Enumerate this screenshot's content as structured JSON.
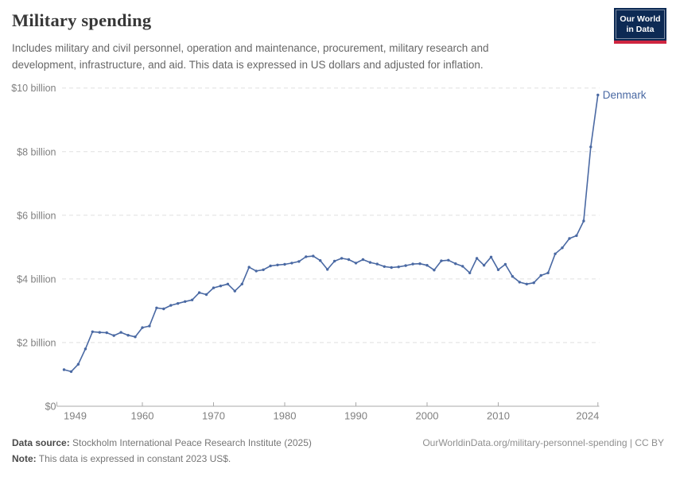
{
  "header": {
    "title": "Military spending",
    "subtitle": "Includes military and civil personnel, operation and maintenance, procurement, military research and development, infrastructure, and aid. This data is expressed in US dollars and adjusted for inflation."
  },
  "logo": {
    "line1": "Our World",
    "line2": "in Data",
    "bg_color": "#0d2a54",
    "bar_color": "#cf2540"
  },
  "chart_data": {
    "type": "line",
    "title": "Military spending",
    "entity_label": "Denmark",
    "line_color": "#4a69a3",
    "grid": true,
    "ylabel": "",
    "xlabel": "",
    "ylim": [
      0,
      10
    ],
    "yticks": [
      {
        "value": 0,
        "label": "$0"
      },
      {
        "value": 2,
        "label": "$2 billion"
      },
      {
        "value": 4,
        "label": "$4 billion"
      },
      {
        "value": 6,
        "label": "$6 billion"
      },
      {
        "value": 8,
        "label": "$8 billion"
      },
      {
        "value": 10,
        "label": "$10 billion"
      }
    ],
    "xticks": [
      1949,
      1960,
      1970,
      1980,
      1990,
      2000,
      2010,
      2024
    ],
    "x": [
      1949,
      1950,
      1951,
      1952,
      1953,
      1954,
      1955,
      1956,
      1957,
      1958,
      1959,
      1960,
      1961,
      1962,
      1963,
      1964,
      1965,
      1966,
      1967,
      1968,
      1969,
      1970,
      1971,
      1972,
      1973,
      1974,
      1975,
      1976,
      1977,
      1978,
      1979,
      1980,
      1981,
      1982,
      1983,
      1984,
      1985,
      1986,
      1987,
      1988,
      1989,
      1990,
      1991,
      1992,
      1993,
      1994,
      1995,
      1996,
      1997,
      1998,
      1999,
      2000,
      2001,
      2002,
      2003,
      2004,
      2005,
      2006,
      2007,
      2008,
      2009,
      2010,
      2011,
      2012,
      2013,
      2014,
      2015,
      2016,
      2017,
      2018,
      2019,
      2020,
      2021,
      2022,
      2023,
      2024
    ],
    "series": [
      {
        "name": "Denmark",
        "values": [
          1.15,
          1.09,
          1.32,
          1.8,
          2.34,
          2.32,
          2.31,
          2.22,
          2.32,
          2.23,
          2.18,
          2.47,
          2.52,
          3.09,
          3.06,
          3.17,
          3.23,
          3.29,
          3.34,
          3.57,
          3.51,
          3.72,
          3.78,
          3.84,
          3.62,
          3.84,
          4.37,
          4.25,
          4.29,
          4.41,
          4.44,
          4.46,
          4.5,
          4.55,
          4.7,
          4.72,
          4.58,
          4.3,
          4.56,
          4.65,
          4.61,
          4.5,
          4.61,
          4.52,
          4.47,
          4.39,
          4.36,
          4.38,
          4.42,
          4.47,
          4.48,
          4.43,
          4.28,
          4.57,
          4.59,
          4.48,
          4.4,
          4.19,
          4.65,
          4.43,
          4.69,
          4.29,
          4.46,
          4.08,
          3.9,
          3.84,
          3.88,
          4.11,
          4.19,
          4.79,
          4.98,
          5.27,
          5.36,
          5.82,
          8.15,
          9.78
        ]
      }
    ]
  },
  "footer": {
    "datasource_label": "Data source:",
    "datasource_value": "Stockholm International Peace Research Institute (2025)",
    "note_label": "Note:",
    "note_value": "This data is expressed in constant 2023 US$.",
    "link_text": "OurWorldinData.org/military-personnel-spending | CC BY"
  }
}
